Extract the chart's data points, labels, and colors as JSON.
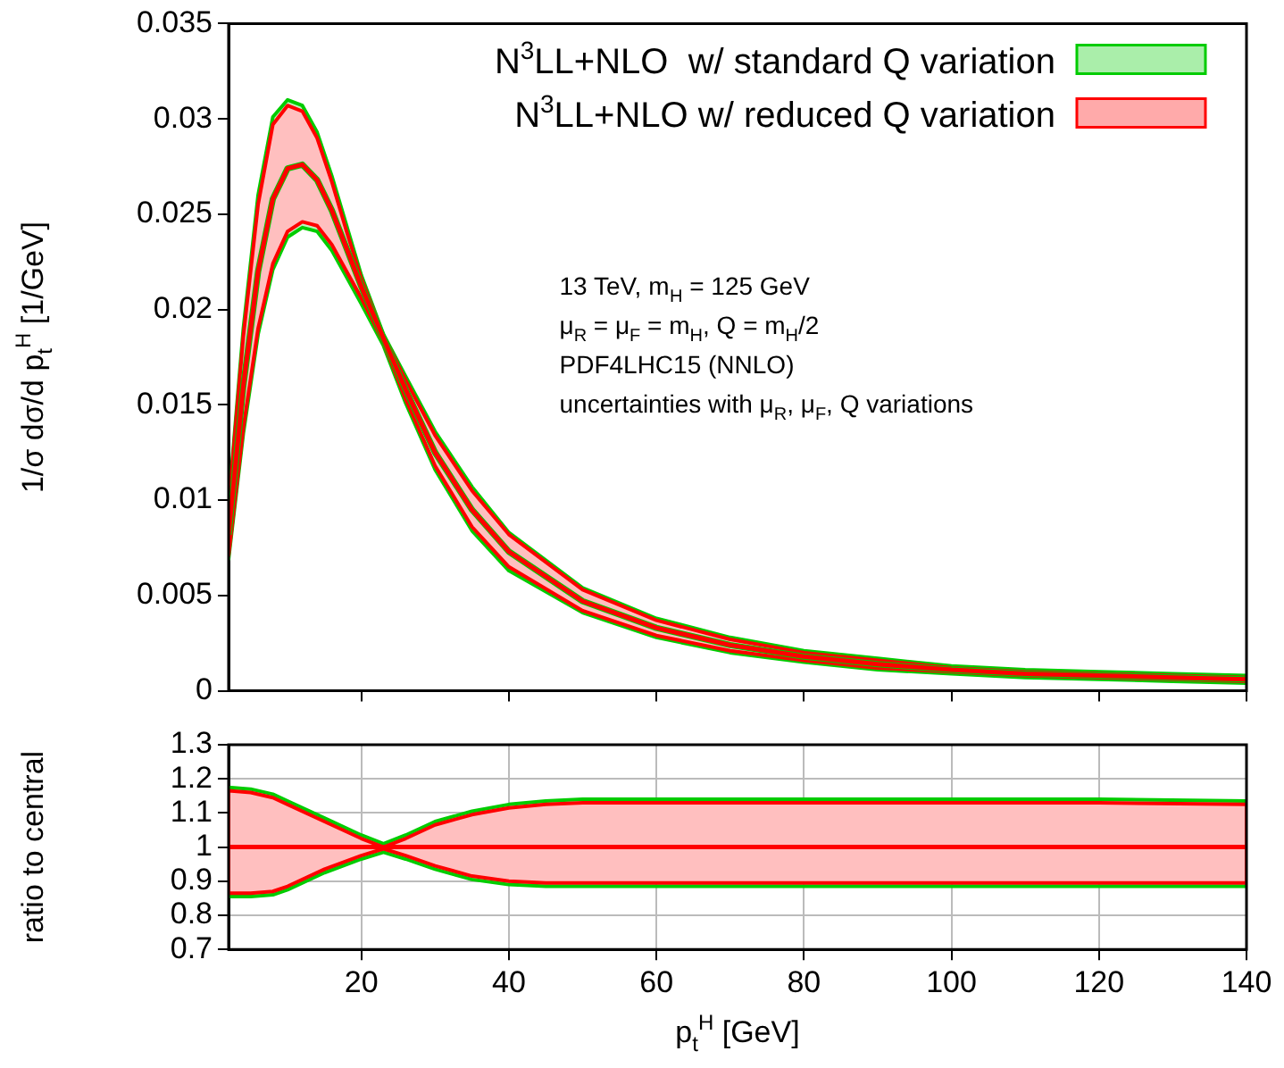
{
  "chart_data": [
    {
      "type": "line",
      "ylabel": "1/σ dσ/d p$_{t}$$^{H}$ [1/GeV]",
      "xlim": [
        2,
        140
      ],
      "xticks": [
        20,
        40,
        60,
        80,
        100,
        120,
        140
      ],
      "ylim": [
        0,
        0.035
      ],
      "yticks": [
        0,
        0.005,
        0.01,
        0.015,
        0.02,
        0.025,
        0.03,
        0.035
      ],
      "tick_labels": "y",
      "grid": false,
      "legend": "top right",
      "annotations": [
        "13 TeV, m$_{H}$ = 125 GeV",
        "μ$_{R}$ = μ$_{F}$ = m$_{H}$, Q = m$_{H}$/2",
        "PDF4LHC15 (NNLO)",
        "uncertainties with μ$_{R}$, μ$_{F}$, Q variations"
      ],
      "x": [
        2,
        4,
        6,
        8,
        10,
        12,
        14,
        16,
        18,
        20,
        23,
        26,
        30,
        35,
        40,
        50,
        60,
        70,
        80,
        90,
        100,
        110,
        120,
        130,
        140
      ],
      "series": [
        {
          "name": "N$^{3}$LL+NLO  w/ standard Q variation",
          "color": "#00cc00",
          "values": [
            0.0082,
            0.016,
            0.022,
            0.0258,
            0.0274,
            0.0276,
            0.0268,
            0.0252,
            0.0232,
            0.0212,
            0.0185,
            0.0158,
            0.0125,
            0.0095,
            0.0073,
            0.0047,
            0.0033,
            0.0024,
            0.0018,
            0.0014,
            0.0011,
            0.0009,
            0.0008,
            0.0007,
            0.0006
          ],
          "upper": [
            0.0098,
            0.019,
            0.026,
            0.0301,
            0.031,
            0.0307,
            0.0293,
            0.027,
            0.0244,
            0.0218,
            0.0187,
            0.0165,
            0.0136,
            0.0107,
            0.0083,
            0.0054,
            0.0038,
            0.0028,
            0.0021,
            0.0017,
            0.0013,
            0.0011,
            0.001,
            0.0009,
            0.0008
          ],
          "lower": [
            0.0069,
            0.0135,
            0.0187,
            0.0221,
            0.0238,
            0.0243,
            0.0241,
            0.0231,
            0.0217,
            0.0203,
            0.0181,
            0.0151,
            0.0116,
            0.0084,
            0.0063,
            0.0041,
            0.0028,
            0.002,
            0.0015,
            0.0011,
            0.0009,
            0.0007,
            0.0006,
            0.0005,
            0.0004
          ]
        },
        {
          "name": "N$^{3}$LL+NLO w/ reduced Q variation",
          "color": "#ff0000",
          "values": [
            0.0082,
            0.016,
            0.022,
            0.0258,
            0.0274,
            0.0276,
            0.0268,
            0.0252,
            0.0232,
            0.0212,
            0.0185,
            0.0158,
            0.0125,
            0.0095,
            0.0073,
            0.0047,
            0.0033,
            0.0024,
            0.0018,
            0.0014,
            0.0011,
            0.0009,
            0.0008,
            0.0007,
            0.0006
          ],
          "upper": [
            0.0096,
            0.0186,
            0.0255,
            0.0297,
            0.0307,
            0.0304,
            0.029,
            0.0267,
            0.0241,
            0.0216,
            0.0186,
            0.0163,
            0.0134,
            0.0105,
            0.0082,
            0.0053,
            0.0037,
            0.0027,
            0.002,
            0.0016,
            0.0012,
            0.001,
            0.0009,
            0.0008,
            0.0007
          ],
          "lower": [
            0.0071,
            0.0138,
            0.019,
            0.0224,
            0.0241,
            0.0246,
            0.0244,
            0.0234,
            0.022,
            0.0206,
            0.0183,
            0.0153,
            0.0118,
            0.0086,
            0.0065,
            0.0042,
            0.0029,
            0.0021,
            0.0016,
            0.0012,
            0.001,
            0.0008,
            0.0007,
            0.0006,
            0.0005
          ]
        }
      ]
    },
    {
      "type": "line",
      "xlabel": "p$_{t}$$^{H}$ [GeV]",
      "ylabel": "ratio to central",
      "xlim": [
        2,
        140
      ],
      "xticks": [
        20,
        40,
        60,
        80,
        100,
        120,
        140
      ],
      "ylim": [
        0.7,
        1.3
      ],
      "yticks": [
        0.7,
        0.8,
        0.9,
        1,
        1.1,
        1.2,
        1.3
      ],
      "grid": true,
      "x": [
        2,
        5,
        8,
        10,
        15,
        20,
        23,
        26,
        30,
        35,
        40,
        45,
        50,
        60,
        80,
        100,
        120,
        140
      ],
      "series": [
        {
          "color": "#00cc00",
          "values": [
            null,
            null,
            null,
            null,
            null,
            null,
            null,
            null,
            null,
            null,
            null,
            null,
            null,
            null,
            null,
            null,
            null,
            null
          ],
          "upper": [
            1.175,
            1.17,
            1.155,
            1.135,
            1.085,
            1.035,
            1.01,
            1.035,
            1.075,
            1.105,
            1.125,
            1.135,
            1.14,
            1.14,
            1.14,
            1.14,
            1.14,
            1.135
          ],
          "lower": [
            0.855,
            0.855,
            0.86,
            0.875,
            0.925,
            0.965,
            0.985,
            0.965,
            0.935,
            0.905,
            0.89,
            0.885,
            0.885,
            0.885,
            0.885,
            0.885,
            0.885,
            0.885
          ]
        },
        {
          "color": "#ff0000",
          "values": [
            1,
            1,
            1,
            1,
            1,
            1,
            1,
            1,
            1,
            1,
            1,
            1,
            1,
            1,
            1,
            1,
            1,
            1
          ],
          "upper": [
            1.165,
            1.16,
            1.145,
            1.125,
            1.075,
            1.025,
            1.0,
            1.025,
            1.065,
            1.095,
            1.115,
            1.125,
            1.13,
            1.13,
            1.13,
            1.13,
            1.13,
            1.125
          ],
          "lower": [
            0.865,
            0.865,
            0.87,
            0.885,
            0.935,
            0.975,
            0.995,
            0.975,
            0.945,
            0.915,
            0.9,
            0.895,
            0.895,
            0.895,
            0.895,
            0.895,
            0.895,
            0.895
          ]
        }
      ]
    }
  ]
}
